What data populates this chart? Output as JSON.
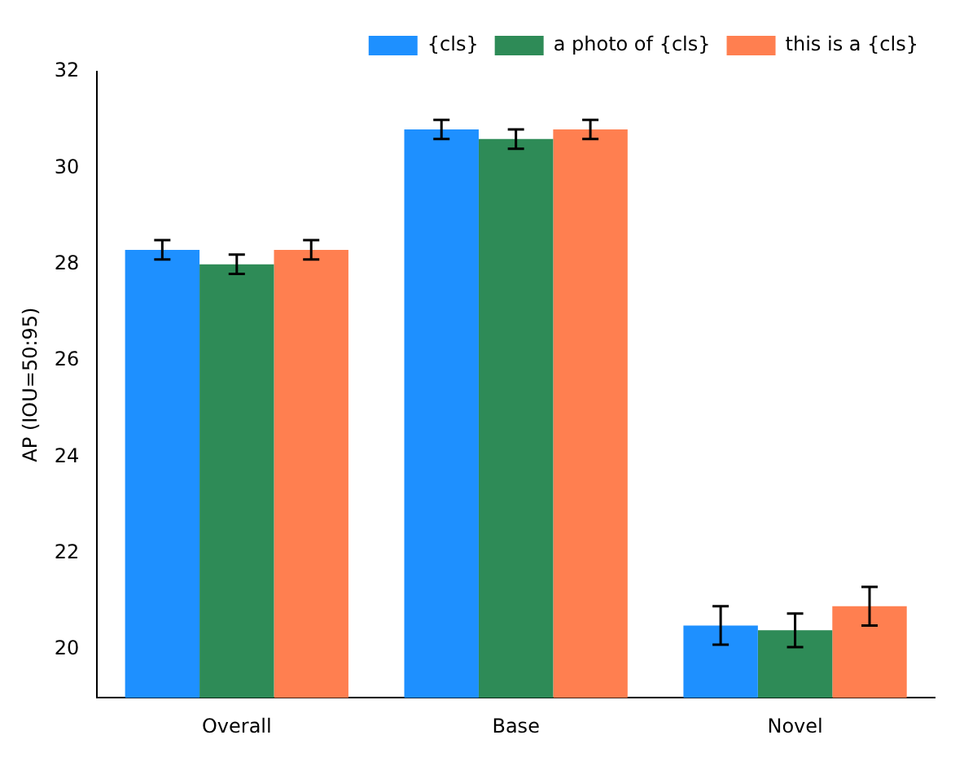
{
  "chart_data": {
    "type": "bar",
    "ylabel": "AP (IOU=50:95)",
    "categories": [
      "Overall",
      "Base",
      "Novel"
    ],
    "series": [
      {
        "name": "{cls}",
        "color": "#1e90ff",
        "values": [
          28.3,
          30.8,
          20.5
        ],
        "errors": [
          0.2,
          0.2,
          0.4
        ]
      },
      {
        "name": "a photo of {cls}",
        "color": "#2e8b57",
        "values": [
          28.0,
          30.6,
          20.4
        ],
        "errors": [
          0.2,
          0.2,
          0.35
        ]
      },
      {
        "name": "this is a {cls}",
        "color": "#ff7f50",
        "values": [
          28.3,
          30.8,
          20.9
        ],
        "errors": [
          0.2,
          0.2,
          0.4
        ]
      }
    ],
    "ylim": [
      19,
      32
    ],
    "yticks": [
      20,
      22,
      24,
      26,
      28,
      30,
      32
    ],
    "grid": false,
    "legend": "top right"
  }
}
